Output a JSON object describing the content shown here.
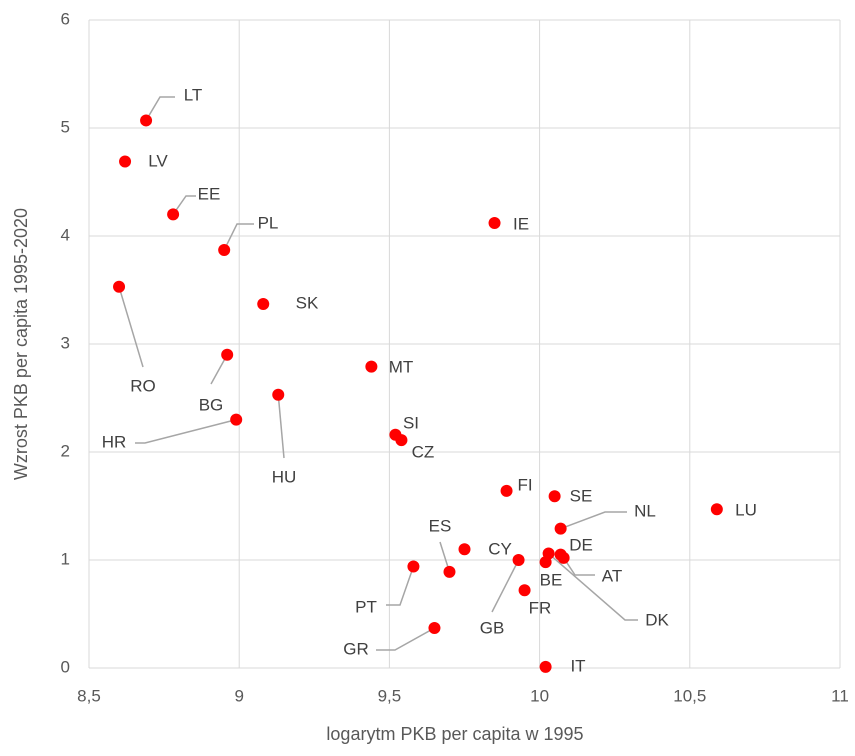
{
  "chart_data": {
    "type": "scatter",
    "x_label": "logarytm PKB per capita w 1995",
    "y_label": "Wzrost PKB per capita 1995-2020",
    "color": "#ff0000",
    "grid": true,
    "xlim": [
      8.5,
      11
    ],
    "xticks": [
      {
        "value": 8.5,
        "label": "8,5"
      },
      9,
      {
        "value": 9.5,
        "label": "9,5"
      },
      10,
      {
        "value": 10.5,
        "label": "10,5"
      },
      11
    ],
    "ylim": [
      0,
      6
    ],
    "yticks": [
      0,
      1,
      2,
      3,
      4,
      5,
      6
    ],
    "point_labels": [
      "LT",
      "LV",
      "EE",
      "PL",
      "RO",
      "SK",
      "BG",
      "HR",
      "HU",
      "MT",
      "IE",
      "SI",
      "CZ",
      "FI",
      "SE",
      "LU",
      "NL",
      "ES",
      "CY",
      "DE",
      "AT",
      "DK",
      "GB",
      "BE",
      "FR",
      "PT",
      "GR",
      "IT"
    ],
    "x": [
      8.69,
      8.62,
      8.78,
      8.95,
      8.6,
      9.08,
      8.96,
      8.99,
      9.13,
      9.44,
      9.85,
      9.52,
      9.54,
      9.89,
      10.05,
      10.59,
      10.07,
      9.7,
      9.75,
      10.07,
      10.08,
      10.03,
      9.93,
      10.02,
      9.95,
      9.58,
      9.65,
      10.02
    ],
    "y": [
      5.07,
      4.69,
      4.2,
      3.87,
      3.53,
      3.37,
      2.9,
      2.3,
      2.53,
      2.79,
      4.12,
      2.16,
      2.11,
      1.64,
      1.59,
      1.47,
      1.29,
      0.89,
      1.1,
      1.05,
      1.02,
      1.06,
      1.0,
      0.98,
      0.72,
      0.94,
      0.37,
      0.01
    ]
  }
}
